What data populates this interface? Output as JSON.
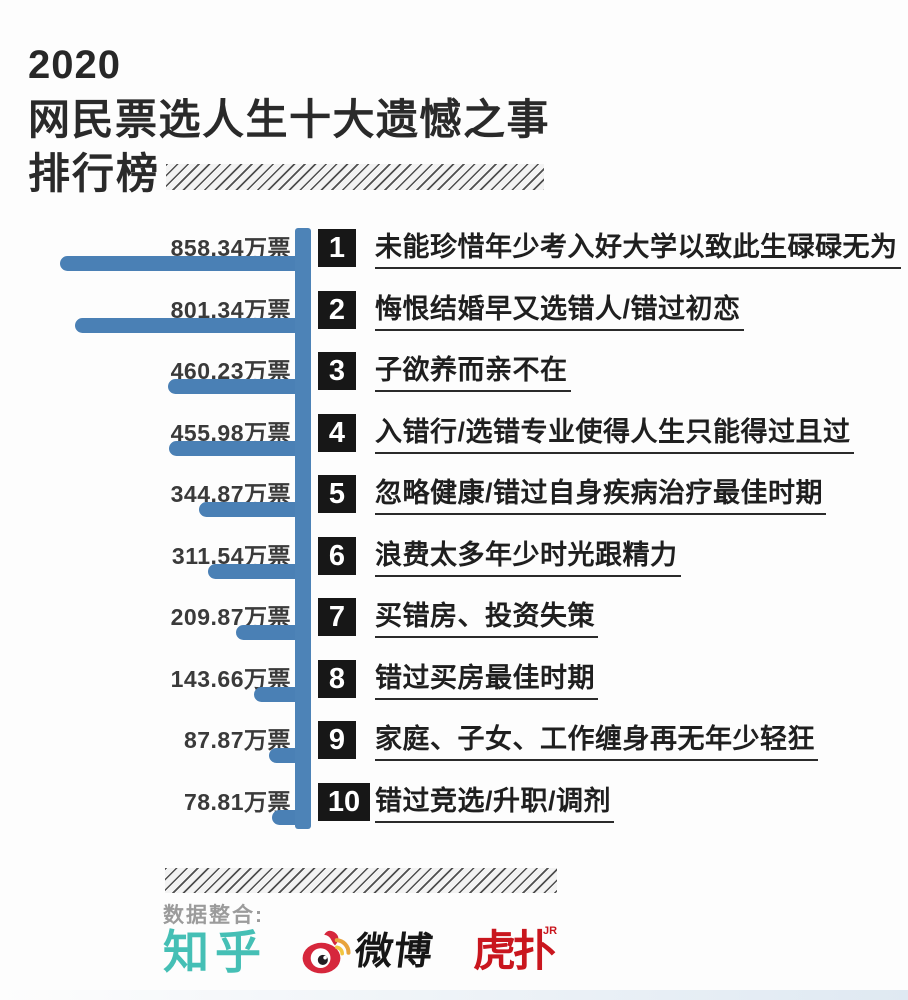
{
  "colors": {
    "bar_blue": "#4a80b5",
    "axis_blue": "#4d83b7",
    "rank_black": "#171717",
    "zhihu_teal": "#45bfb5",
    "weibo_red": "#d6273c",
    "hupu_red": "#c9161e"
  },
  "header": {
    "year": "2020",
    "title": "网民票选人生十大遗憾之事",
    "subtitle": "排行榜"
  },
  "chart_data": {
    "type": "bar",
    "orientation": "horizontal",
    "title": "2020网民票选人生十大遗憾之事排行榜",
    "unit": "万票",
    "value_axis_max": 858.34,
    "grid": false,
    "legend": false,
    "items": [
      {
        "rank": 1,
        "votes": 858.34,
        "votes_label": "858.34万票",
        "label": "未能珍惜年少考入好大学以致此生碌碌无为"
      },
      {
        "rank": 2,
        "votes": 801.34,
        "votes_label": "801.34万票",
        "label": "悔恨结婚早又选错人/错过初恋"
      },
      {
        "rank": 3,
        "votes": 460.23,
        "votes_label": "460.23万票",
        "label": "子欲养而亲不在"
      },
      {
        "rank": 4,
        "votes": 455.98,
        "votes_label": "455.98万票",
        "label": "入错行/选错专业使得人生只能得过且过"
      },
      {
        "rank": 5,
        "votes": 344.87,
        "votes_label": "344.87万票",
        "label": "忽略健康/错过自身疾病治疗最佳时期"
      },
      {
        "rank": 6,
        "votes": 311.54,
        "votes_label": "311.54万票",
        "label": "浪费太多年少时光跟精力"
      },
      {
        "rank": 7,
        "votes": 209.87,
        "votes_label": "209.87万票",
        "label": "买错房、投资失策"
      },
      {
        "rank": 8,
        "votes": 143.66,
        "votes_label": "143.66万票",
        "label": "错过买房最佳时期"
      },
      {
        "rank": 9,
        "votes": 87.87,
        "votes_label": "87.87万票",
        "label": "家庭、子女、工作缠身再无年少轻狂"
      },
      {
        "rank": 10,
        "votes": 78.81,
        "votes_label": "78.81万票",
        "label": "错过竞选/升职/调剂"
      }
    ]
  },
  "footer": {
    "source_label": "数据整合:",
    "zhihu_text": "知乎",
    "weibo_text": "微博",
    "hupu_text": "虎扑",
    "hupu_badge": "JR"
  }
}
